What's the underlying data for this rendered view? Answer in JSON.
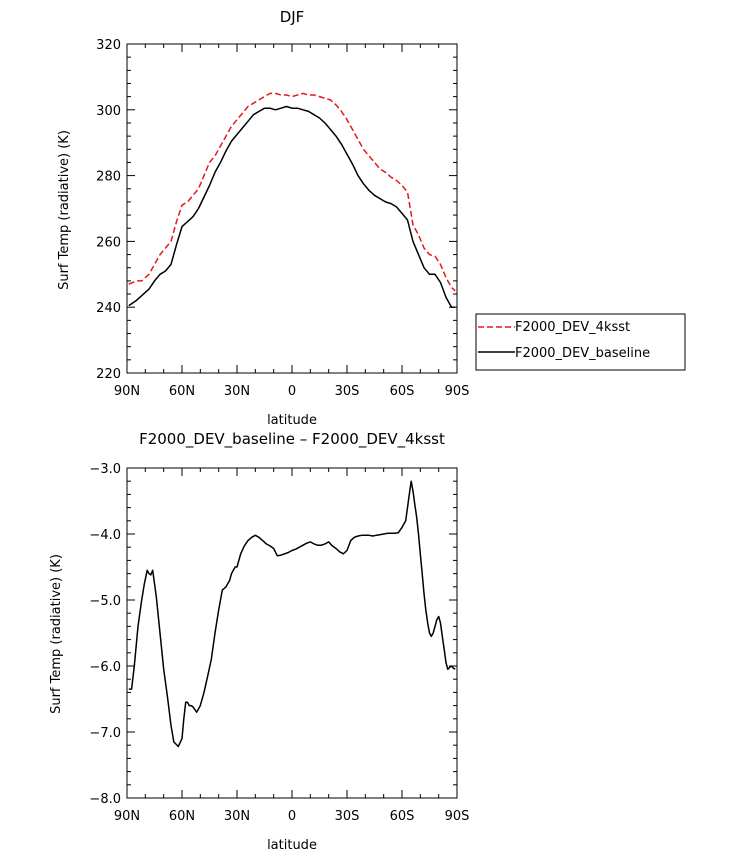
{
  "chart_data": [
    {
      "type": "line",
      "title": "DJF",
      "xlabel": "latitude",
      "ylabel": "Surf Temp (radiative) (K)",
      "xlim": [
        90,
        -90
      ],
      "ylim": [
        220,
        320
      ],
      "xticks": [
        90,
        60,
        30,
        0,
        -30,
        -60,
        -90
      ],
      "xtick_labels": [
        "90N",
        "60N",
        "30N",
        "0",
        "30S",
        "60S",
        "90S"
      ],
      "yticks": [
        220,
        240,
        260,
        280,
        300,
        320
      ],
      "ytick_labels": [
        "220",
        "240",
        "260",
        "280",
        "300",
        "320"
      ],
      "legend": "right",
      "series": [
        {
          "name": "F2000_DEV_4ksst",
          "color": "#e41a1c",
          "dash": "dashed",
          "x": [
            89,
            85,
            82,
            78,
            75,
            72,
            69,
            66,
            63,
            60,
            57,
            54,
            51,
            48,
            45,
            42,
            39,
            36,
            33,
            30,
            27,
            24,
            21,
            18,
            15,
            12,
            9,
            6,
            3,
            0,
            -3,
            -6,
            -9,
            -12,
            -15,
            -18,
            -21,
            -24,
            -27,
            -30,
            -33,
            -36,
            -39,
            -42,
            -45,
            -48,
            -51,
            -54,
            -57,
            -60,
            -63,
            -66,
            -69,
            -72,
            -75,
            -78,
            -81,
            -84,
            -87,
            -89
          ],
          "y": [
            247,
            248,
            248,
            250,
            253,
            256,
            258,
            260,
            266,
            271,
            272,
            274,
            276,
            280,
            284,
            286,
            289,
            292,
            295,
            297,
            299,
            301,
            302,
            303,
            304,
            305,
            305,
            304.5,
            304.5,
            304,
            304.5,
            305,
            304.5,
            304.5,
            304,
            303.5,
            303,
            301.5,
            299.5,
            297,
            294,
            291,
            288,
            286,
            284,
            282,
            281,
            279.5,
            278.5,
            277,
            275,
            265,
            262,
            258,
            256,
            255.5,
            253,
            249,
            246,
            245
          ]
        },
        {
          "name": "F2000_DEV_baseline",
          "color": "#000000",
          "dash": "solid",
          "x": [
            89,
            85,
            82,
            78,
            75,
            72,
            69,
            66,
            63,
            60,
            57,
            54,
            51,
            48,
            45,
            42,
            39,
            36,
            33,
            30,
            27,
            24,
            21,
            18,
            15,
            12,
            9,
            6,
            3,
            0,
            -3,
            -6,
            -9,
            -12,
            -15,
            -18,
            -21,
            -24,
            -27,
            -30,
            -33,
            -36,
            -39,
            -42,
            -45,
            -48,
            -51,
            -54,
            -57,
            -60,
            -63,
            -66,
            -69,
            -72,
            -75,
            -78,
            -81,
            -84,
            -87,
            -89
          ],
          "y": [
            240.5,
            242,
            243.5,
            245.5,
            248,
            250,
            251,
            253,
            259,
            264.5,
            266,
            267.5,
            270,
            273.5,
            277,
            281,
            284,
            287.5,
            290.5,
            292.5,
            294.5,
            296.5,
            298.5,
            299.5,
            300.5,
            300.5,
            300,
            300.5,
            301,
            300.5,
            300.5,
            300,
            299.5,
            298.5,
            297.5,
            296,
            294,
            292,
            289.5,
            286.5,
            283.5,
            280,
            277.5,
            275.5,
            274,
            273,
            272,
            271.5,
            270.5,
            268.5,
            266.5,
            260,
            256,
            252,
            250,
            250,
            247.5,
            243,
            240,
            240
          ]
        }
      ]
    },
    {
      "type": "line",
      "title": "F2000_DEV_baseline – F2000_DEV_4ksst",
      "xlabel": "latitude",
      "ylabel": "Surf Temp (radiative) (K)",
      "xlim": [
        90,
        -90
      ],
      "ylim": [
        -8.0,
        -3.0
      ],
      "xticks": [
        90,
        60,
        30,
        0,
        -30,
        -60,
        -90
      ],
      "xtick_labels": [
        "90N",
        "60N",
        "30N",
        "0",
        "30S",
        "60S",
        "90S"
      ],
      "yticks": [
        -8,
        -7,
        -6,
        -5,
        -4,
        -3
      ],
      "ytick_labels": [
        "−8.0",
        "−7.0",
        "−6.0",
        "−5.0",
        "−4.0",
        "−3.0"
      ],
      "series": [
        {
          "color": "#000000",
          "dash": "solid",
          "x": [
            89,
            87.5,
            86,
            84,
            82,
            80.5,
            79,
            78,
            77,
            76,
            74,
            72,
            70,
            68,
            66,
            64.5,
            62,
            60,
            59,
            58,
            57,
            56,
            55,
            54,
            52,
            50,
            48,
            46,
            44,
            42,
            40,
            38,
            36,
            34,
            33,
            32,
            31,
            30,
            28,
            26,
            24,
            22,
            20,
            18,
            16,
            14,
            12,
            10,
            8,
            6,
            4,
            2,
            0,
            -2,
            -4,
            -6,
            -8,
            -10,
            -12,
            -14,
            -16,
            -18,
            -20,
            -22,
            -24,
            -26,
            -28,
            -30,
            -32,
            -34,
            -36,
            -38,
            -40,
            -42,
            -44,
            -46,
            -48,
            -50,
            -52,
            -54,
            -56,
            -58,
            -60,
            -62,
            -63,
            -64,
            -65,
            -66,
            -67,
            -68,
            -69,
            -70,
            -71,
            -72,
            -73,
            -74,
            -75,
            -76,
            -77,
            -78,
            -79,
            -80,
            -81,
            -82,
            -83,
            -84,
            -85,
            -86,
            -87,
            -88,
            -89
          ],
          "y": [
            -6.35,
            -6.35,
            -6.0,
            -5.4,
            -5.0,
            -4.75,
            -4.55,
            -4.6,
            -4.62,
            -4.55,
            -4.95,
            -5.5,
            -6.05,
            -6.45,
            -6.9,
            -7.15,
            -7.22,
            -7.1,
            -6.8,
            -6.55,
            -6.55,
            -6.6,
            -6.6,
            -6.62,
            -6.7,
            -6.6,
            -6.4,
            -6.15,
            -5.9,
            -5.5,
            -5.15,
            -4.85,
            -4.8,
            -4.7,
            -4.6,
            -4.55,
            -4.5,
            -4.5,
            -4.3,
            -4.18,
            -4.1,
            -4.05,
            -4.02,
            -4.05,
            -4.1,
            -4.15,
            -4.18,
            -4.22,
            -4.33,
            -4.32,
            -4.3,
            -4.28,
            -4.25,
            -4.23,
            -4.2,
            -4.17,
            -4.14,
            -4.12,
            -4.15,
            -4.17,
            -4.17,
            -4.15,
            -4.12,
            -4.18,
            -4.22,
            -4.27,
            -4.3,
            -4.25,
            -4.1,
            -4.05,
            -4.03,
            -4.02,
            -4.02,
            -4.02,
            -4.03,
            -4.02,
            -4.01,
            -4.0,
            -3.99,
            -3.99,
            -3.99,
            -3.98,
            -3.9,
            -3.8,
            -3.6,
            -3.4,
            -3.2,
            -3.35,
            -3.55,
            -3.75,
            -4.0,
            -4.3,
            -4.6,
            -4.9,
            -5.15,
            -5.35,
            -5.5,
            -5.55,
            -5.5,
            -5.4,
            -5.3,
            -5.25,
            -5.35,
            -5.55,
            -5.75,
            -5.95,
            -6.05,
            -6.02,
            -6.0,
            -6.03,
            -6.05
          ]
        }
      ]
    }
  ]
}
